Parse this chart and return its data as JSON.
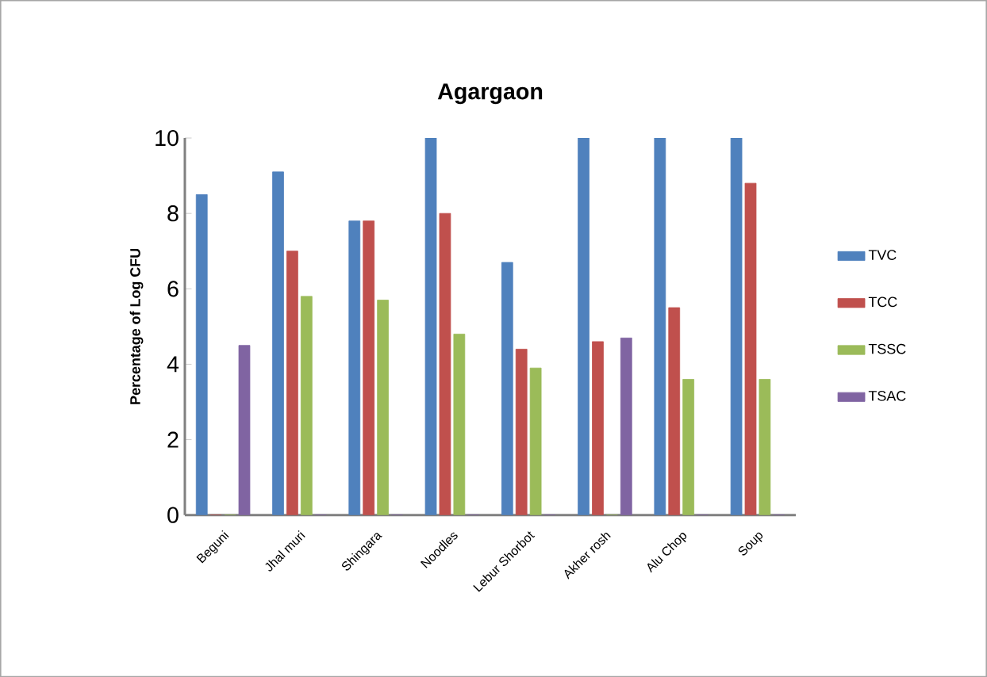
{
  "chart_data": {
    "type": "bar",
    "title": "Agargaon",
    "ylabel": "Percentage of Log CFU",
    "categories": [
      "Beguni",
      "Jhal muri",
      "Shingara",
      "Noodles",
      "Lebur Shorbot",
      "Akher rosh",
      "Alu Chop",
      "Soup"
    ],
    "series": [
      {
        "name": "TVC",
        "color": "#4f81bd",
        "values": [
          8.5,
          9.1,
          7.8,
          10,
          6.7,
          10,
          10,
          10
        ]
      },
      {
        "name": "TCC",
        "color": "#c0504d",
        "values": [
          0,
          7.0,
          7.8,
          8.0,
          4.4,
          4.6,
          5.5,
          8.8
        ]
      },
      {
        "name": "TSSC",
        "color": "#9bbb59",
        "values": [
          0,
          5.8,
          5.7,
          4.8,
          3.9,
          0,
          3.6,
          3.6
        ]
      },
      {
        "name": "TSAC",
        "color": "#8064a2",
        "values": [
          4.5,
          0,
          0,
          0,
          0,
          4.7,
          0,
          0
        ]
      }
    ],
    "ylim": [
      0,
      10
    ],
    "yticks": [
      0,
      2,
      4,
      6,
      8,
      10
    ],
    "legend": "right"
  }
}
